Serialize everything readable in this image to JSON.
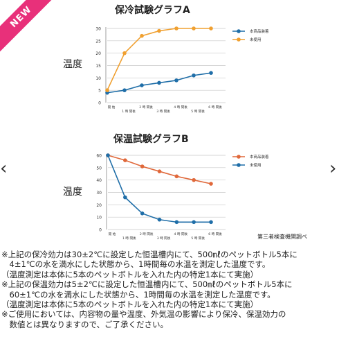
{
  "badge": {
    "label": "NEW",
    "color": "#e8307a"
  },
  "nav": {
    "prev_icon": "chevron-left-icon",
    "next_icon": "chevron-right-icon",
    "prev_glyph": "‹",
    "next_glyph": "›"
  },
  "source_note": "第三者検査機関調べ",
  "notes": [
    "※上記の保冷効力は30±2℃に設定した恒温槽内にて、500㎖のペットボトル5本に",
    "　4±1℃の水を満水にした状態から、1時間毎の水温を測定した温度です。",
    "（温度測定は本体に5本のペットボトルを入れた内の特定1本にて実施）",
    "※上記の保温効力は5±2℃に設定した恒温槽内にて、500㎖のペットボトル5本に",
    "　60±1℃の水を満水にした状態から、1時間毎の水温を測定した温度です。",
    "（温度測定は本体に5本のペットボトルを入れた内の特定1本にて実施）",
    "※ご使用においては、内容物の量や温度、外気温の影響により保冷、保温効力の",
    "　数値とは異なりますので、ご了承ください。"
  ],
  "chart_data": [
    {
      "type": "line",
      "title": "保冷試験グラフA",
      "ylabel": "温度",
      "xlabel": "",
      "categories": [
        "開 始",
        "1 時 間後",
        "2 時 間後",
        "3 時 間後",
        "4 時 間後",
        "5 時 間後",
        "6 時 間後"
      ],
      "ylim": [
        0,
        30
      ],
      "yticks": [
        0,
        5,
        10,
        15,
        20,
        25,
        30
      ],
      "grid": true,
      "legend": "top-right",
      "series": [
        {
          "name": "本商品装着",
          "color": "#1f6ea8",
          "values": [
            4,
            5,
            7,
            8,
            9,
            11,
            12
          ]
        },
        {
          "name": "未使用",
          "color": "#f0a030",
          "values": [
            5,
            20,
            27,
            29,
            30,
            30,
            30
          ]
        }
      ]
    },
    {
      "type": "line",
      "title": "保温試験グラフB",
      "ylabel": "温度",
      "xlabel": "",
      "categories": [
        "開 始",
        "1 時 間後",
        "2 時 間後",
        "3 時 間後",
        "4 時 間後",
        "5 時 間後",
        "6 時 間後"
      ],
      "ylim": [
        0,
        60
      ],
      "yticks": [
        0,
        10,
        20,
        30,
        40,
        50,
        60
      ],
      "grid": true,
      "legend": "top-right",
      "series": [
        {
          "name": "本商品装着",
          "color": "#e0683a",
          "values": [
            60,
            56,
            51,
            47,
            43,
            40,
            37
          ]
        },
        {
          "name": "未使用",
          "color": "#1f6ea8",
          "values": [
            60,
            26,
            13,
            8,
            6,
            6,
            6
          ]
        }
      ]
    }
  ]
}
